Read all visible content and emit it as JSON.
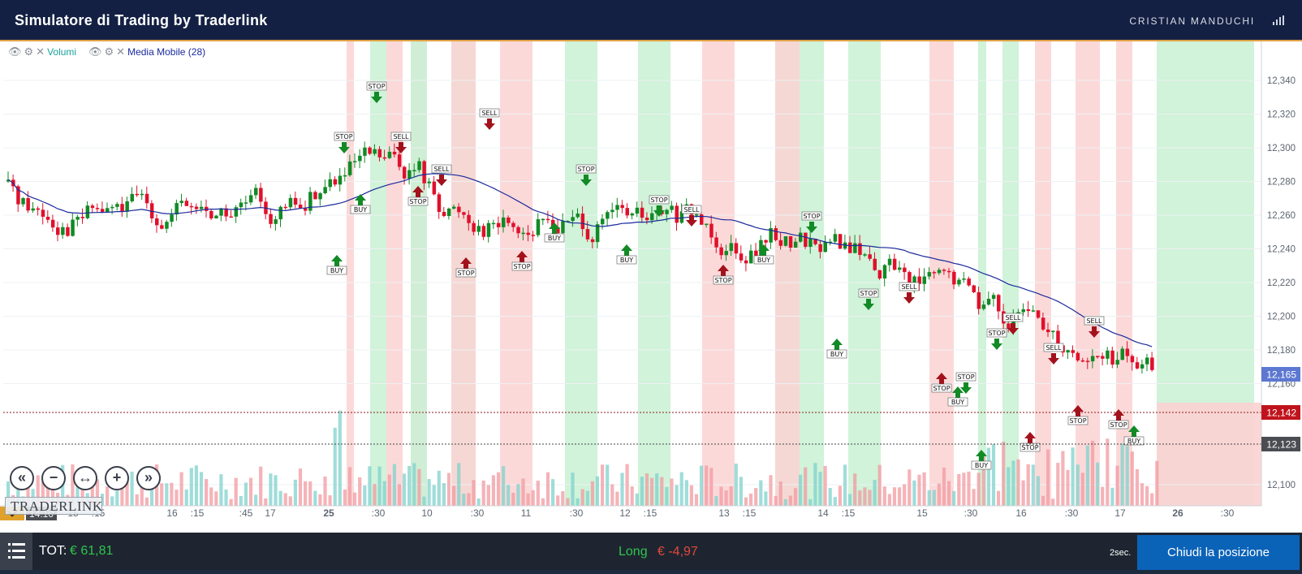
{
  "app": {
    "title": "Simulatore di Trading by Traderlink",
    "user": "CRISTIAN MANDUCHI"
  },
  "indicators": {
    "volume_label": "Volumi",
    "ma_label": "Media Mobile (28)"
  },
  "nav": {
    "first": "«",
    "zoom_out": "−",
    "fit": "↔",
    "zoom_in": "+",
    "last": "»",
    "logo": "TRADERLINK"
  },
  "time_axis": {
    "current_time": "14:10",
    "labels": [
      [
        "15",
        90
      ],
      [
        ":15",
        121
      ],
      [
        "16",
        212
      ],
      [
        ":15",
        243
      ],
      [
        ":45",
        303
      ],
      [
        "17",
        333
      ],
      [
        "25",
        405
      ],
      [
        ":30",
        466
      ],
      [
        "10",
        526
      ],
      [
        ":30",
        588
      ],
      [
        "11",
        648
      ],
      [
        ":30",
        710
      ],
      [
        "12",
        770
      ],
      [
        ":15",
        801
      ],
      [
        "13",
        892
      ],
      [
        ":15",
        923
      ],
      [
        "14",
        1014
      ],
      [
        ":15",
        1045
      ],
      [
        "15",
        1136
      ],
      [
        ":30",
        1196
      ],
      [
        "16",
        1258
      ],
      [
        ":30",
        1320
      ],
      [
        "17",
        1380
      ],
      [
        "26",
        1451
      ],
      [
        ":30",
        1512
      ]
    ]
  },
  "price_axis": {
    "ticks": [
      "12,340",
      "12,320",
      "12,300",
      "12,280",
      "12,260",
      "12,240",
      "12,220",
      "12,200",
      "12,180",
      "12,160",
      "12,100"
    ],
    "ma_value": "12,165",
    "entry_price": "12,142",
    "last_price": "12,123"
  },
  "colors": {
    "up": "#128a25",
    "down": "#e0102c",
    "ma": "#1a2a9c",
    "long_zone": "#c8f1d3",
    "short_zone": "#fbd2d2"
  },
  "markers": {
    "buy": "BUY",
    "sell": "SELL",
    "stop": "STOP"
  },
  "footer": {
    "tot_label": "TOT:",
    "tot_value": "€ 61,81",
    "position_side": "Long",
    "position_pnl": "€ -4,97",
    "refresh": "2sec.",
    "close_button": "Chiudi la posizione"
  }
}
